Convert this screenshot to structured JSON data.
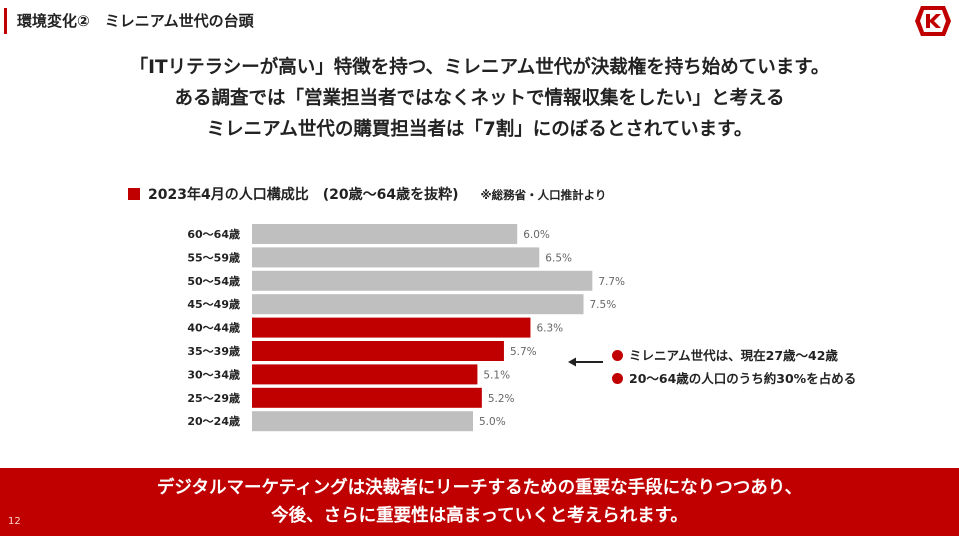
{
  "header": {
    "title": "環境変化②　ミレニアム世代の台頭"
  },
  "headline": {
    "lines": [
      "「ITリテラシーが高い」特徴を持つ、ミレニアム世代が決裁権を持ち始めています。",
      "ある調査では「営業担当者ではなくネットで情報収集をしたい」と考える",
      "ミレニアム世代の購買担当者は「7割」にのぼるとされています。"
    ]
  },
  "chart_header": {
    "title": "2023年4月の人口構成比　(20歳～64歳を抜粋)",
    "source": "※総務省・人口推計より"
  },
  "chart_data": {
    "type": "bar",
    "orientation": "horizontal",
    "title": "2023年4月の人口構成比　(20歳～64歳を抜粋)",
    "categories": [
      "60～64歳",
      "55～59歳",
      "50～54歳",
      "45～49歳",
      "40～44歳",
      "35～39歳",
      "30～34歳",
      "25～29歳",
      "20～24歳"
    ],
    "values": [
      6.0,
      6.5,
      7.7,
      7.5,
      6.3,
      5.7,
      5.1,
      5.2,
      5.0
    ],
    "value_labels": [
      "6.0%",
      "6.5%",
      "7.7%",
      "7.5%",
      "6.3%",
      "5.7%",
      "5.1%",
      "5.2%",
      "5.0%"
    ],
    "highlighted": [
      false,
      false,
      false,
      false,
      true,
      true,
      true,
      true,
      false
    ],
    "unit": "%",
    "xlim": [
      0,
      8
    ],
    "colors": {
      "default": "#bfbfbf",
      "highlight": "#c00000"
    }
  },
  "callout": {
    "items": [
      "ミレニアム世代は、現在27歳～42歳",
      "20～64歳の人口のうち約30%を占める"
    ]
  },
  "footer": {
    "lines": [
      "デジタルマーケティングは決裁者にリーチするための重要な手段になりつつあり、",
      "今後、さらに重要性は高まっていくと考えられます。"
    ]
  },
  "page": {
    "number": "12"
  },
  "colors": {
    "accent": "#c00000",
    "gray": "#bfbfbf"
  },
  "icons": {
    "logo": "brand-logo-icon",
    "arrow": "left-arrow-icon",
    "bullet": "red-dot-icon"
  }
}
